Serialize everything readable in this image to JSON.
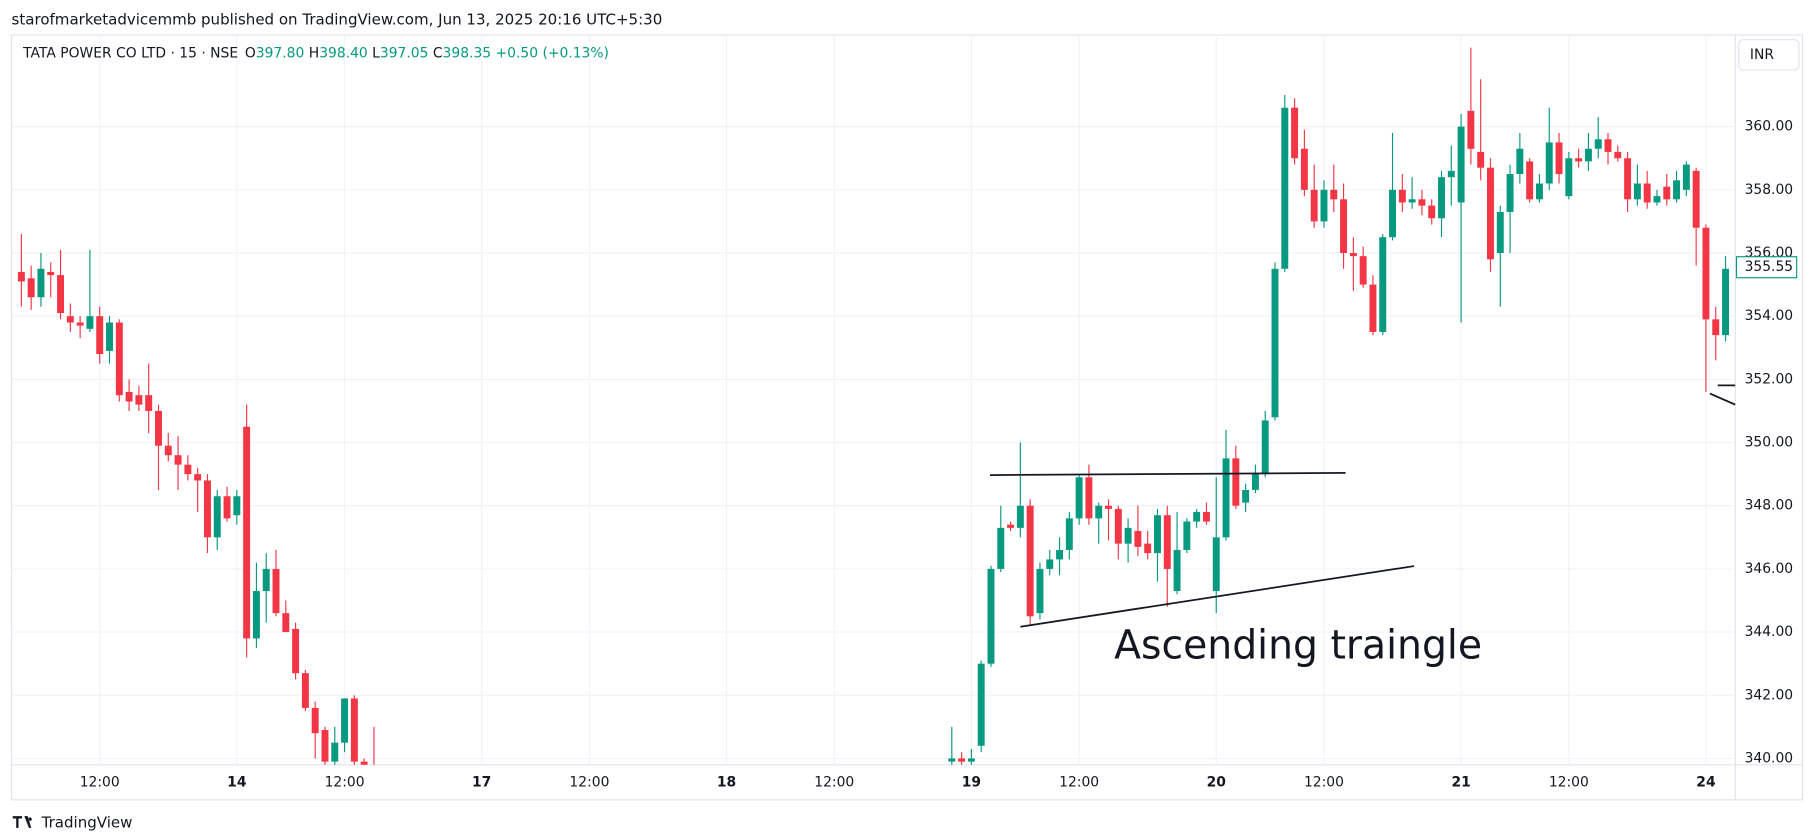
{
  "header": {
    "published": "starofmarketadvicemmb published on TradingView.com, Jun 13, 2025 20:16 UTC+5:30",
    "brand": "TradingView"
  },
  "chart_data": {
    "type": "candlestick",
    "legend": {
      "symbol": "TATA POWER CO LTD · 15 · NSE",
      "o_label": "O",
      "open": "397.80",
      "h_label": "H",
      "high": "398.40",
      "l_label": "L",
      "low": "397.05",
      "c_label": "C",
      "close": "398.35",
      "change": "+0.50 (+0.13%)"
    },
    "currency": "INR",
    "annotation": "Ascending traingle",
    "up_color": "#089981",
    "down_color": "#f23645",
    "xlim": [
      -98,
      78
    ],
    "ylim": [
      339.8,
      362.9
    ],
    "xticks": [
      {
        "value": -89,
        "label": "12:00"
      },
      {
        "value": -75,
        "label": "14"
      },
      {
        "value": -64,
        "label": "12:00"
      },
      {
        "value": -50,
        "label": "17"
      },
      {
        "value": -39,
        "label": "12:00"
      },
      {
        "value": -25,
        "label": "18"
      },
      {
        "value": -14,
        "label": "12:00"
      },
      {
        "value": 0,
        "label": "19"
      },
      {
        "value": 11,
        "label": "12:00"
      },
      {
        "value": 25,
        "label": "20"
      },
      {
        "value": 36,
        "label": "12:00"
      },
      {
        "value": 50,
        "label": "21"
      },
      {
        "value": 61,
        "label": "12:00"
      },
      {
        "value": 75,
        "label": "24"
      }
    ],
    "yticks": [
      {
        "value": 340,
        "label": "340.00"
      },
      {
        "value": 342,
        "label": "342.00"
      },
      {
        "value": 344,
        "label": "344.00"
      },
      {
        "value": 346,
        "label": "346.00"
      },
      {
        "value": 348,
        "label": "348.00"
      },
      {
        "value": 350,
        "label": "350.00"
      },
      {
        "value": 352,
        "label": "352.00"
      },
      {
        "value": 354,
        "label": "354.00"
      },
      {
        "value": 356,
        "label": "356.00"
      },
      {
        "value": 358,
        "label": "358.00"
      },
      {
        "value": 360,
        "label": "360.00"
      }
    ],
    "grid": true,
    "last_price": 355.55,
    "x": [
      -97,
      -96,
      -95,
      -94,
      -93,
      -92,
      -91,
      -90,
      -89,
      -88,
      -87,
      -86,
      -85,
      -84,
      -83,
      -82,
      -81,
      -80,
      -79,
      -78,
      -77,
      -76,
      -75,
      -74,
      -73,
      -72,
      -71,
      -70,
      -69,
      -68,
      -67,
      -66,
      -65,
      -64,
      -63,
      -62,
      -61,
      -2,
      -1,
      0,
      1,
      2,
      3,
      4,
      5,
      6,
      7,
      8,
      9,
      10,
      11,
      12,
      13,
      14,
      15,
      16,
      17,
      18,
      19,
      20,
      21,
      22,
      23,
      24,
      25,
      26,
      27,
      28,
      29,
      30,
      31,
      32,
      33,
      34,
      35,
      36,
      37,
      38,
      39,
      40,
      41,
      42,
      43,
      44,
      45,
      46,
      47,
      48,
      49,
      50,
      51,
      52,
      53,
      54,
      55,
      56,
      57,
      58,
      59,
      60,
      61,
      62,
      63,
      64,
      65,
      66,
      67,
      68,
      69,
      70,
      71,
      72,
      73,
      74,
      75,
      76,
      77
    ],
    "open": [
      355.4,
      355.2,
      354.6,
      355.4,
      355.3,
      354.0,
      353.8,
      353.6,
      354.0,
      352.9,
      353.8,
      351.6,
      351.5,
      351.5,
      351.0,
      349.9,
      349.6,
      349.3,
      349.0,
      348.8,
      347.0,
      348.3,
      347.7,
      350.5,
      343.8,
      345.3,
      346.0,
      344.6,
      344.1,
      342.7,
      341.6,
      340.9,
      339.9,
      340.5,
      341.9,
      339.9,
      339.8,
      339.9,
      340.0,
      339.9,
      340.4,
      343.0,
      346.0,
      347.4,
      347.3,
      348.0,
      344.6,
      346.0,
      346.3,
      346.6,
      347.6,
      348.9,
      347.6,
      348.0,
      347.9,
      346.8,
      347.2,
      346.8,
      346.5,
      347.7,
      345.3,
      346.6,
      347.5,
      347.8,
      345.3,
      347.0,
      349.5,
      348.1,
      348.5,
      349.0,
      350.8,
      355.5,
      360.6,
      359.3,
      358.0,
      357.0,
      358.0,
      357.7,
      356.0,
      355.9,
      355.0,
      353.5,
      356.5,
      358.0,
      357.6,
      357.7,
      357.5,
      357.1,
      358.4,
      357.6,
      360.5,
      359.2,
      358.7,
      356.0,
      357.3,
      358.5,
      358.9,
      357.7,
      358.2,
      359.5,
      357.8,
      359.0,
      358.9,
      359.3,
      359.6,
      359.2,
      359.0,
      357.7,
      358.2,
      357.6,
      358.1,
      357.7,
      358.0,
      358.6,
      356.8,
      353.9,
      353.4
    ],
    "high": [
      356.6,
      355.6,
      356.0,
      355.7,
      356.1,
      354.4,
      354.0,
      356.1,
      354.3,
      354.0,
      353.9,
      352.0,
      351.8,
      352.5,
      351.2,
      350.3,
      350.2,
      349.6,
      349.2,
      349.0,
      348.5,
      348.6,
      348.5,
      351.2,
      346.2,
      346.5,
      346.6,
      345.0,
      344.3,
      342.8,
      341.8,
      341.0,
      341.0,
      341.9,
      342.0,
      340.0,
      341.0,
      341.0,
      340.2,
      340.3,
      343.1,
      346.1,
      348.0,
      347.5,
      350.0,
      348.2,
      346.2,
      346.6,
      347.0,
      347.8,
      349.0,
      349.3,
      348.1,
      348.2,
      348.0,
      347.6,
      348.0,
      347.2,
      347.9,
      348.0,
      347.8,
      347.6,
      347.9,
      348.1,
      348.9,
      350.4,
      349.9,
      348.7,
      349.3,
      351.0,
      355.7,
      361.0,
      360.9,
      359.9,
      358.8,
      358.3,
      358.8,
      358.2,
      356.5,
      356.2,
      355.3,
      356.6,
      359.8,
      358.5,
      358.4,
      358.0,
      357.7,
      358.6,
      359.4,
      360.4,
      362.5,
      361.5,
      359.0,
      357.5,
      358.8,
      359.8,
      359.0,
      358.5,
      360.6,
      359.8,
      359.2,
      359.3,
      359.8,
      360.3,
      359.8,
      359.4,
      359.2,
      358.8,
      358.6,
      358.0,
      358.5,
      358.6,
      358.9,
      358.7,
      356.9,
      354.3,
      355.9
    ],
    "low": [
      354.3,
      354.2,
      354.3,
      354.6,
      353.9,
      353.5,
      353.3,
      353.5,
      352.5,
      352.5,
      351.3,
      351.0,
      351.0,
      350.3,
      348.5,
      349.4,
      348.5,
      348.8,
      347.8,
      346.5,
      346.6,
      347.5,
      347.4,
      343.2,
      343.5,
      344.3,
      344.5,
      344.0,
      342.5,
      341.5,
      340.0,
      339.5,
      339.5,
      340.2,
      339.5,
      339.2,
      339.3,
      339.5,
      339.5,
      339.5,
      340.2,
      342.9,
      345.9,
      347.2,
      347.0,
      344.2,
      344.4,
      345.8,
      345.8,
      346.3,
      347.4,
      347.4,
      346.8,
      346.9,
      346.3,
      346.2,
      346.4,
      346.3,
      345.6,
      344.8,
      345.2,
      346.5,
      347.3,
      347.4,
      344.6,
      346.9,
      347.9,
      347.8,
      348.4,
      348.9,
      350.7,
      355.4,
      358.8,
      357.8,
      356.8,
      356.8,
      357.3,
      355.5,
      354.8,
      354.9,
      353.4,
      353.4,
      356.4,
      357.3,
      357.4,
      357.2,
      356.9,
      356.5,
      357.5,
      353.8,
      358.8,
      358.3,
      355.4,
      354.3,
      356.0,
      358.2,
      357.6,
      357.6,
      358.0,
      358.2,
      357.7,
      358.7,
      358.6,
      359.0,
      358.8,
      358.9,
      357.3,
      357.5,
      357.4,
      357.5,
      357.5,
      357.6,
      357.8,
      355.6,
      351.6,
      352.6,
      353.2
    ],
    "close": [
      355.1,
      354.6,
      355.5,
      355.3,
      354.1,
      353.8,
      353.7,
      354.0,
      352.8,
      353.8,
      351.5,
      351.3,
      351.2,
      351.0,
      349.9,
      349.6,
      349.3,
      349.0,
      348.8,
      347.0,
      348.3,
      347.6,
      348.3,
      343.8,
      345.3,
      346.0,
      344.6,
      344.0,
      342.7,
      341.6,
      340.8,
      339.9,
      340.5,
      341.9,
      339.9,
      339.5,
      339.5,
      340.0,
      339.9,
      340.0,
      343.0,
      346.0,
      347.3,
      347.3,
      348.0,
      344.5,
      346.0,
      346.3,
      346.6,
      347.6,
      348.9,
      347.6,
      348.0,
      347.9,
      346.8,
      347.3,
      346.7,
      346.5,
      347.7,
      346.0,
      346.6,
      347.5,
      347.8,
      347.5,
      347.0,
      349.5,
      348.0,
      348.5,
      349.0,
      350.7,
      355.5,
      360.6,
      359.0,
      358.0,
      357.0,
      358.0,
      357.7,
      356.0,
      355.9,
      355.0,
      353.5,
      356.5,
      358.0,
      357.6,
      357.7,
      357.5,
      357.1,
      358.4,
      358.6,
      360.0,
      359.3,
      358.7,
      355.8,
      357.3,
      358.5,
      359.3,
      357.7,
      358.2,
      359.5,
      358.5,
      359.0,
      358.9,
      359.3,
      359.6,
      359.2,
      359.0,
      357.7,
      358.2,
      357.6,
      357.8,
      357.7,
      358.3,
      358.8,
      356.8,
      353.9,
      353.4,
      355.5
    ],
    "lines": [
      {
        "x": [
          1.9,
          38.2
        ],
        "y": [
          348.97,
          349.04
        ]
      },
      {
        "x": [
          5,
          45.2
        ],
        "y": [
          344.17,
          346.09
        ]
      },
      {
        "x": [
          75.4,
          78
        ],
        "y": [
          351.55,
          351.2
        ]
      },
      {
        "x": [
          76.2,
          78
        ],
        "y": [
          351.81,
          351.81
        ]
      }
    ]
  }
}
